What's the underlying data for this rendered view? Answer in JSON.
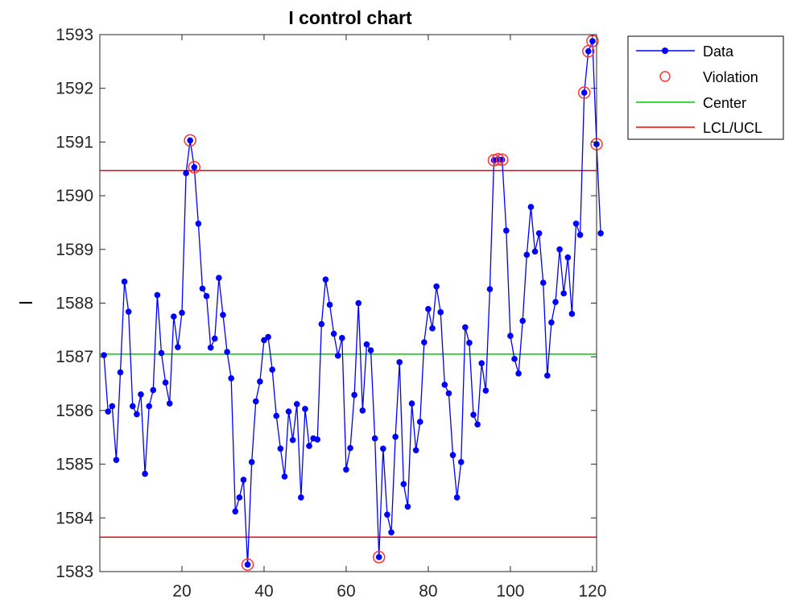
{
  "chart_data": {
    "type": "line",
    "title": "I control chart",
    "ylabel": "I",
    "xlabel": "",
    "xlim": [
      0,
      121
    ],
    "ylim": [
      1583,
      1593
    ],
    "xticks": [
      20,
      40,
      60,
      80,
      100,
      120
    ],
    "yticks": [
      1583,
      1584,
      1585,
      1586,
      1587,
      1588,
      1589,
      1590,
      1591,
      1592,
      1593
    ],
    "center": 1587.05,
    "lcl": 1583.64,
    "ucl": 1590.47,
    "series": [
      {
        "name": "Data",
        "color": "#0000ff",
        "values": [
          1587.03,
          1585.98,
          1586.08,
          1585.08,
          1586.71,
          1588.4,
          1587.84,
          1586.08,
          1585.93,
          1586.3,
          1584.82,
          1586.08,
          1586.38,
          1588.15,
          1587.07,
          1586.52,
          1586.13,
          1587.75,
          1587.18,
          1587.82,
          1590.42,
          1591.03,
          1590.53,
          1589.48,
          1588.27,
          1588.13,
          1587.17,
          1587.34,
          1588.47,
          1587.78,
          1587.09,
          1586.6,
          1584.12,
          1584.38,
          1584.71,
          1583.13,
          1585.04,
          1586.17,
          1586.54,
          1587.31,
          1587.37,
          1586.76,
          1585.9,
          1585.29,
          1584.77,
          1585.98,
          1585.45,
          1586.12,
          1584.38,
          1586.03,
          1585.34,
          1585.48,
          1585.46,
          1587.61,
          1588.44,
          1587.97,
          1587.43,
          1587.02,
          1587.35,
          1584.9,
          1585.3,
          1586.29,
          1588.0,
          1586.0,
          1587.23,
          1587.12,
          1585.48,
          1583.27,
          1585.29,
          1584.06,
          1583.73,
          1585.51,
          1586.9,
          1584.63,
          1584.21,
          1586.13,
          1585.26,
          1585.79,
          1587.27,
          1587.89,
          1587.53,
          1588.31,
          1587.83,
          1586.48,
          1586.32,
          1585.17,
          1584.38,
          1585.04,
          1587.55,
          1587.26,
          1585.92,
          1585.74,
          1586.88,
          1586.37,
          1588.26,
          1590.66,
          1590.68,
          1590.67,
          1589.35,
          1587.39,
          1586.96,
          1586.69,
          1587.67,
          1588.9,
          1589.79,
          1588.96,
          1589.3,
          1588.38,
          1586.65,
          1587.64,
          1588.02,
          1589.0,
          1588.18,
          1588.85,
          1587.8,
          1589.48,
          1589.27,
          1591.92,
          1592.69,
          1592.88,
          1590.96,
          1589.3
        ]
      },
      {
        "name": "Violation",
        "color": "#ff3333",
        "indices": [
          22,
          23,
          36,
          68,
          96,
          97,
          98,
          118,
          119,
          120,
          121
        ]
      },
      {
        "name": "Center",
        "color": "#00cc00"
      },
      {
        "name": "LCL/UCL",
        "color": "#ff0000"
      }
    ],
    "legend_position": "outside-top-right",
    "grid": false
  }
}
